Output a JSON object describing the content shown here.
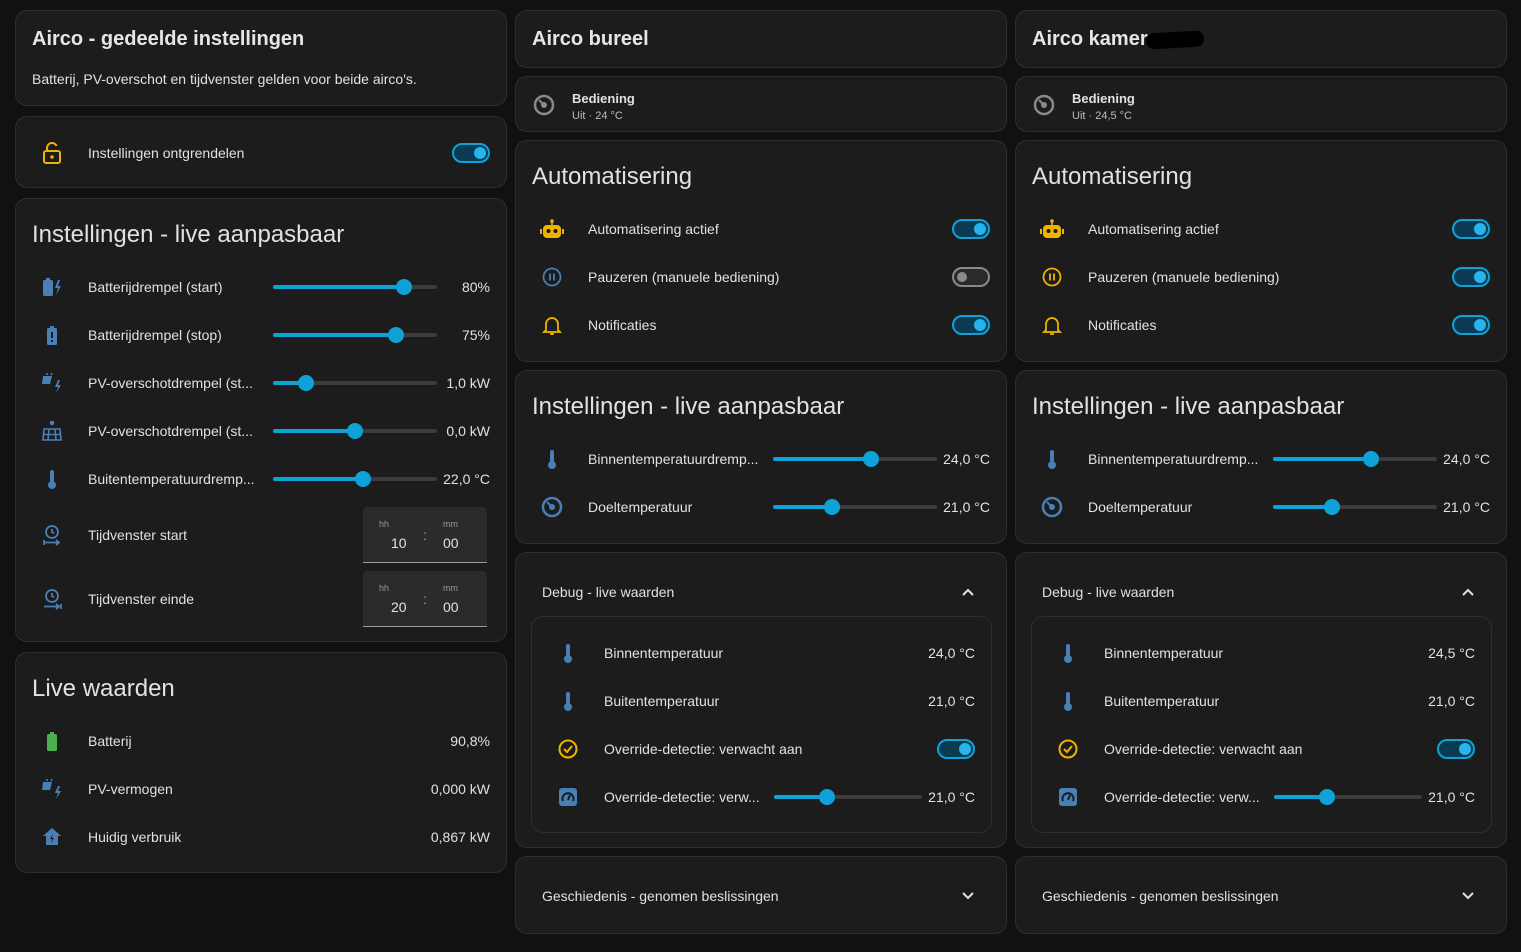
{
  "colors": {
    "accent": "#0fa2d8",
    "amber": "#f0b400",
    "icon_blue": "#4a7fb4",
    "green": "#4caf50",
    "background": "#111111",
    "card": "#1c1c1c"
  },
  "shared": {
    "title": "Airco - gedeelde instellingen",
    "description": "Batterij, PV-overschot en tijdvenster gelden voor beide airco's.",
    "unlock": {
      "label": "Instellingen ontgrendelen",
      "on": true,
      "icon": "lock-open-icon"
    },
    "settings_title": "Instellingen - live aanpasbaar",
    "sliders": [
      {
        "label": "Batterijdrempel (start)",
        "value": "80%",
        "level": 0.8,
        "icon": "battery-charging-icon"
      },
      {
        "label": "Batterijdrempel (stop)",
        "value": "75%",
        "level": 0.75,
        "icon": "battery-alert-icon"
      },
      {
        "label": "PV-overschotdrempel (st...",
        "value": "1,0 kW",
        "level": 0.2,
        "icon": "solar-power-icon"
      },
      {
        "label": "PV-overschotdrempel (st...",
        "value": "0,0 kW",
        "level": 0.5,
        "icon": "solar-panel-icon"
      },
      {
        "label": "Buitentemperatuurdremp...",
        "value": "22,0 °C",
        "level": 0.55,
        "icon": "thermometer-icon"
      }
    ],
    "time_start": {
      "label": "Tijdvenster start",
      "hh_placeholder": "hh",
      "mm_placeholder": "mm",
      "hh": "10",
      "mm": "00",
      "colon": ":"
    },
    "time_end": {
      "label": "Tijdvenster einde",
      "hh_placeholder": "hh",
      "mm_placeholder": "mm",
      "hh": "20",
      "mm": "00",
      "colon": ":"
    },
    "live_title": "Live waarden",
    "live": [
      {
        "label": "Batterij",
        "value": "90,8%",
        "icon": "battery-icon"
      },
      {
        "label": "PV-vermogen",
        "value": "0,000 kW",
        "icon": "solar-power-icon"
      },
      {
        "label": "Huidig verbruik",
        "value": "0,867 kW",
        "icon": "home-lightning-icon"
      }
    ]
  },
  "units": [
    {
      "title": "Airco bureel",
      "bediening": {
        "name": "Bediening",
        "state": "Uit · 24 °C"
      },
      "automation_title": "Automatisering",
      "automation": [
        {
          "label": "Automatisering actief",
          "on": true,
          "icon": "robot-icon"
        },
        {
          "label": "Pauzeren (manuele bediening)",
          "on": false,
          "icon": "pause-circle-icon"
        },
        {
          "label": "Notificaties",
          "on": true,
          "icon": "bell-icon"
        }
      ],
      "settings_title": "Instellingen - live aanpasbaar",
      "sliders": [
        {
          "label": "Binnentemperatuurdremp...",
          "value": "24,0 °C",
          "level": 0.6,
          "icon": "thermometer-icon"
        },
        {
          "label": "Doeltemperatuur",
          "value": "21,0 °C",
          "level": 0.36,
          "icon": "thermostat-icon"
        }
      ],
      "debug_title": "Debug - live waarden",
      "debug": [
        {
          "label": "Binnentemperatuur",
          "value": "24,0 °C",
          "icon": "thermometer-icon"
        },
        {
          "label": "Buitentemperatuur",
          "value": "21,0 °C",
          "icon": "thermometer-icon"
        },
        {
          "label": "Override-detectie: verwacht aan",
          "toggle": true,
          "icon": "check-circle-icon"
        },
        {
          "label": "Override-detectie: verw...",
          "value": "21,0 °C",
          "level": 0.36,
          "icon": "gauge-icon"
        }
      ],
      "history_title": "Geschiedenis - genomen beslissingen"
    },
    {
      "title": "Airco kamer",
      "bediening": {
        "name": "Bediening",
        "state": "Uit · 24,5 °C"
      },
      "automation_title": "Automatisering",
      "automation": [
        {
          "label": "Automatisering actief",
          "on": true,
          "icon": "robot-icon"
        },
        {
          "label": "Pauzeren (manuele bediening)",
          "on": true,
          "icon": "pause-circle-icon"
        },
        {
          "label": "Notificaties",
          "on": true,
          "icon": "bell-icon"
        }
      ],
      "settings_title": "Instellingen - live aanpasbaar",
      "sliders": [
        {
          "label": "Binnentemperatuurdremp...",
          "value": "24,0 °C",
          "level": 0.6,
          "icon": "thermometer-icon"
        },
        {
          "label": "Doeltemperatuur",
          "value": "21,0 °C",
          "level": 0.36,
          "icon": "thermostat-icon"
        }
      ],
      "debug_title": "Debug - live waarden",
      "debug": [
        {
          "label": "Binnentemperatuur",
          "value": "24,5 °C",
          "icon": "thermometer-icon"
        },
        {
          "label": "Buitentemperatuur",
          "value": "21,0 °C",
          "icon": "thermometer-icon"
        },
        {
          "label": "Override-detectie: verwacht aan",
          "toggle": true,
          "icon": "check-circle-icon"
        },
        {
          "label": "Override-detectie: verw...",
          "value": "21,0 °C",
          "level": 0.36,
          "icon": "gauge-icon"
        }
      ],
      "history_title": "Geschiedenis - genomen beslissingen"
    }
  ]
}
